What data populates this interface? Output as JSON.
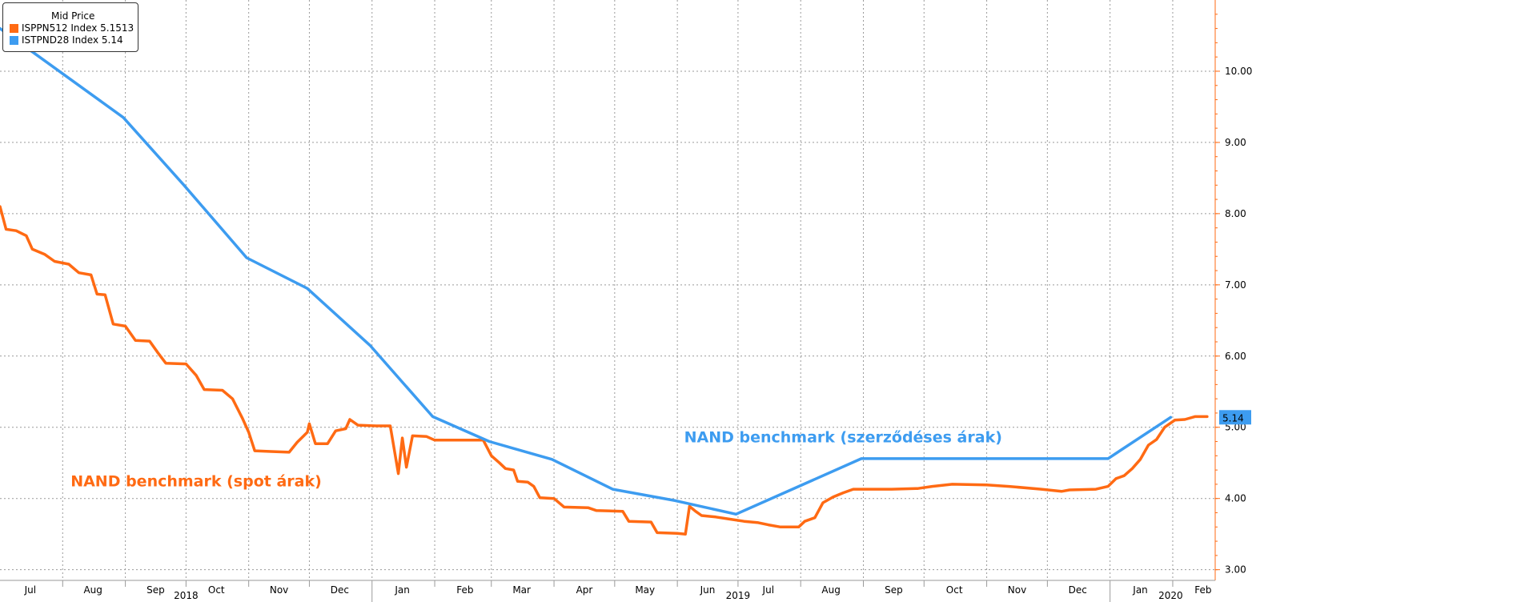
{
  "legend": {
    "title": "Mid Price",
    "items": [
      {
        "label": "ISPPN512 Index 5.1513",
        "color": "#ff6a13"
      },
      {
        "label": "ISTPND28 Index 5.14",
        "color": "#3d9cf0"
      }
    ]
  },
  "chart_data": {
    "type": "line",
    "ylim": [
      2.85,
      11.0
    ],
    "yticks": [
      3.0,
      4.0,
      5.0,
      6.0,
      7.0,
      8.0,
      9.0,
      10.0
    ],
    "ytick_labels": [
      "3.00",
      "4.00",
      "5.00",
      "6.00",
      "7.00",
      "8.00",
      "9.00",
      "10.00"
    ],
    "xlim": [
      "2018-07-01",
      "2020-02-22"
    ],
    "month_labels": [
      {
        "label": "Jul",
        "date": "2018-07-16"
      },
      {
        "label": "Aug",
        "date": "2018-08-16"
      },
      {
        "label": "Sep",
        "date": "2018-09-16"
      },
      {
        "label": "Oct",
        "date": "2018-10-16"
      },
      {
        "label": "Nov",
        "date": "2018-11-16"
      },
      {
        "label": "Dec",
        "date": "2018-12-16"
      },
      {
        "label": "Jan",
        "date": "2019-01-16"
      },
      {
        "label": "Feb",
        "date": "2019-02-16"
      },
      {
        "label": "Mar",
        "date": "2019-03-16"
      },
      {
        "label": "Apr",
        "date": "2019-04-16"
      },
      {
        "label": "May",
        "date": "2019-05-16"
      },
      {
        "label": "Jun",
        "date": "2019-06-16"
      },
      {
        "label": "Jul",
        "date": "2019-07-16"
      },
      {
        "label": "Aug",
        "date": "2019-08-16"
      },
      {
        "label": "Sep",
        "date": "2019-09-16"
      },
      {
        "label": "Oct",
        "date": "2019-10-16"
      },
      {
        "label": "Nov",
        "date": "2019-11-16"
      },
      {
        "label": "Dec",
        "date": "2019-12-16"
      },
      {
        "label": "Jan",
        "date": "2020-01-16"
      },
      {
        "label": "Feb",
        "date": "2020-02-16"
      }
    ],
    "year_labels": [
      {
        "label": "2018",
        "date": "2018-10-01"
      },
      {
        "label": "2019",
        "date": "2019-07-01"
      },
      {
        "label": "2020",
        "date": "2020-01-31"
      }
    ],
    "series": [
      {
        "name": "ISPPN512 Index",
        "color": "#ff6a13",
        "points": [
          [
            "2018-07-01",
            8.1
          ],
          [
            "2018-07-04",
            7.78
          ],
          [
            "2018-07-09",
            7.76
          ],
          [
            "2018-07-14",
            7.69
          ],
          [
            "2018-07-17",
            7.5
          ],
          [
            "2018-07-23",
            7.43
          ],
          [
            "2018-07-28",
            7.33
          ],
          [
            "2018-08-04",
            7.29
          ],
          [
            "2018-08-09",
            7.17
          ],
          [
            "2018-08-15",
            7.14
          ],
          [
            "2018-08-18",
            6.87
          ],
          [
            "2018-08-22",
            6.86
          ],
          [
            "2018-08-26",
            6.45
          ],
          [
            "2018-09-01",
            6.42
          ],
          [
            "2018-09-06",
            6.22
          ],
          [
            "2018-09-13",
            6.21
          ],
          [
            "2018-09-17",
            6.05
          ],
          [
            "2018-09-21",
            5.9
          ],
          [
            "2018-10-01",
            5.89
          ],
          [
            "2018-10-06",
            5.73
          ],
          [
            "2018-10-10",
            5.53
          ],
          [
            "2018-10-19",
            5.52
          ],
          [
            "2018-10-24",
            5.4
          ],
          [
            "2018-10-29",
            5.12
          ],
          [
            "2018-11-01",
            4.93
          ],
          [
            "2018-11-04",
            4.67
          ],
          [
            "2018-11-12",
            4.66
          ],
          [
            "2018-11-21",
            4.65
          ],
          [
            "2018-11-25",
            4.79
          ],
          [
            "2018-11-30",
            4.93
          ],
          [
            "2018-12-01",
            5.05
          ],
          [
            "2018-12-04",
            4.77
          ],
          [
            "2018-12-10",
            4.77
          ],
          [
            "2018-12-14",
            4.95
          ],
          [
            "2018-12-19",
            4.98
          ],
          [
            "2018-12-21",
            5.11
          ],
          [
            "2018-12-25",
            5.03
          ],
          [
            "2019-01-03",
            5.02
          ],
          [
            "2019-01-10",
            5.02
          ],
          [
            "2019-01-14",
            4.35
          ],
          [
            "2019-01-16",
            4.85
          ],
          [
            "2019-01-18",
            4.44
          ],
          [
            "2019-01-21",
            4.88
          ],
          [
            "2019-01-28",
            4.87
          ],
          [
            "2019-02-01",
            4.82
          ],
          [
            "2019-02-25",
            4.82
          ],
          [
            "2019-03-01",
            4.6
          ],
          [
            "2019-03-05",
            4.5
          ],
          [
            "2019-03-08",
            4.42
          ],
          [
            "2019-03-12",
            4.4
          ],
          [
            "2019-03-14",
            4.24
          ],
          [
            "2019-03-19",
            4.23
          ],
          [
            "2019-03-22",
            4.17
          ],
          [
            "2019-03-25",
            4.01
          ],
          [
            "2019-04-01",
            4.0
          ],
          [
            "2019-04-06",
            3.88
          ],
          [
            "2019-04-18",
            3.87
          ],
          [
            "2019-04-22",
            3.83
          ],
          [
            "2019-05-05",
            3.82
          ],
          [
            "2019-05-08",
            3.68
          ],
          [
            "2019-05-19",
            3.67
          ],
          [
            "2019-05-22",
            3.52
          ],
          [
            "2019-06-01",
            3.51
          ],
          [
            "2019-06-05",
            3.5
          ],
          [
            "2019-06-07",
            3.89
          ],
          [
            "2019-06-10",
            3.82
          ],
          [
            "2019-06-13",
            3.76
          ],
          [
            "2019-06-20",
            3.74
          ],
          [
            "2019-06-27",
            3.71
          ],
          [
            "2019-07-04",
            3.68
          ],
          [
            "2019-07-11",
            3.66
          ],
          [
            "2019-07-16",
            3.63
          ],
          [
            "2019-07-22",
            3.6
          ],
          [
            "2019-07-31",
            3.6
          ],
          [
            "2019-08-03",
            3.68
          ],
          [
            "2019-08-08",
            3.73
          ],
          [
            "2019-08-12",
            3.94
          ],
          [
            "2019-08-17",
            4.02
          ],
          [
            "2019-08-22",
            4.08
          ],
          [
            "2019-08-27",
            4.13
          ],
          [
            "2019-09-15",
            4.13
          ],
          [
            "2019-09-28",
            4.14
          ],
          [
            "2019-10-05",
            4.17
          ],
          [
            "2019-10-15",
            4.2
          ],
          [
            "2019-11-01",
            4.19
          ],
          [
            "2019-11-12",
            4.17
          ],
          [
            "2019-11-28",
            4.13
          ],
          [
            "2019-12-08",
            4.1
          ],
          [
            "2019-12-12",
            4.12
          ],
          [
            "2019-12-25",
            4.13
          ],
          [
            "2019-12-31",
            4.17
          ],
          [
            "2020-01-04",
            4.28
          ],
          [
            "2020-01-08",
            4.32
          ],
          [
            "2020-01-12",
            4.42
          ],
          [
            "2020-01-16",
            4.55
          ],
          [
            "2020-01-20",
            4.75
          ],
          [
            "2020-01-24",
            4.83
          ],
          [
            "2020-01-28",
            5.0
          ],
          [
            "2020-02-02",
            5.1
          ],
          [
            "2020-02-07",
            5.11
          ],
          [
            "2020-02-12",
            5.15
          ],
          [
            "2020-02-18",
            5.15
          ]
        ]
      },
      {
        "name": "ISTPND28 Index",
        "color": "#3d9cf0",
        "points": [
          [
            "2018-07-01",
            10.6
          ],
          [
            "2018-08-31",
            9.35
          ],
          [
            "2018-09-30",
            8.4
          ],
          [
            "2018-10-31",
            7.38
          ],
          [
            "2018-11-30",
            6.95
          ],
          [
            "2018-12-31",
            6.15
          ],
          [
            "2019-01-31",
            5.15
          ],
          [
            "2019-02-28",
            4.8
          ],
          [
            "2019-03-31",
            4.55
          ],
          [
            "2019-04-30",
            4.13
          ],
          [
            "2019-05-31",
            3.97
          ],
          [
            "2019-06-30",
            3.78
          ],
          [
            "2019-07-31",
            4.17
          ],
          [
            "2019-08-31",
            4.56
          ],
          [
            "2019-09-30",
            4.56
          ],
          [
            "2019-10-31",
            4.56
          ],
          [
            "2019-11-30",
            4.56
          ],
          [
            "2019-12-31",
            4.56
          ],
          [
            "2020-01-31",
            5.14
          ]
        ]
      }
    ],
    "annotations": [
      {
        "text": "NAND benchmark (spot árak)",
        "date": "2018-10-06",
        "y": 4.17,
        "color": "#ff6a13"
      },
      {
        "text": "NAND benchmark (szerződéses árak)",
        "date": "2019-08-22",
        "y": 4.79,
        "color": "#3d9cf0"
      }
    ],
    "last_value_label": {
      "text": "5.14",
      "y": 5.14
    }
  }
}
